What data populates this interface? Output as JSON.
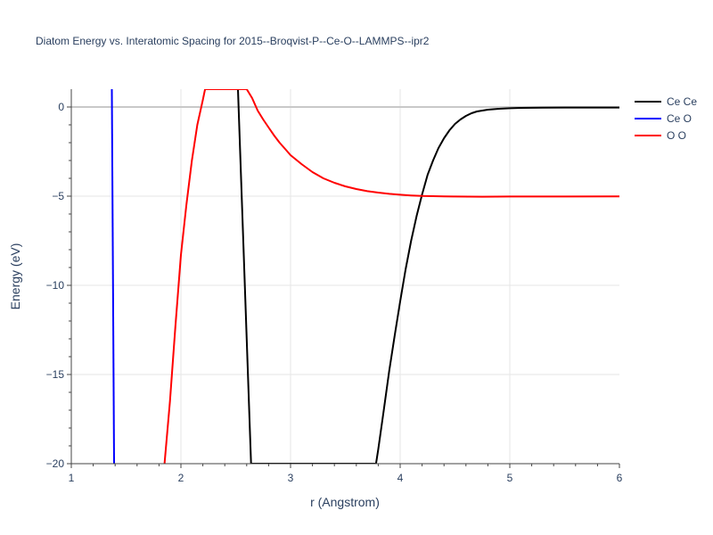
{
  "chart_data": {
    "type": "line",
    "title": "Diatom Energy vs. Interatomic Spacing for 2015--Broqvist-P--Ce-O--LAMMPS--ipr2",
    "xlabel": "r (Angstrom)",
    "ylabel": "Energy (eV)",
    "xlim": [
      1,
      6
    ],
    "ylim": [
      -20,
      1
    ],
    "x_ticks": [
      1,
      2,
      3,
      4,
      5,
      6
    ],
    "x_tick_labels": [
      "1",
      "2",
      "3",
      "4",
      "5",
      "6"
    ],
    "y_ticks": [
      0,
      -5,
      -10,
      -15,
      -20
    ],
    "y_tick_labels": [
      "0",
      "−5",
      "−10",
      "−15",
      "−20"
    ],
    "grid": true,
    "legend_position": "top-right",
    "series": [
      {
        "name": "Ce Ce",
        "color": "#000000",
        "x": [
          2.52,
          2.64,
          3.78,
          3.8,
          3.85,
          3.9,
          3.95,
          4.0,
          4.05,
          4.1,
          4.15,
          4.2,
          4.25,
          4.3,
          4.35,
          4.4,
          4.45,
          4.5,
          4.55,
          4.6,
          4.65,
          4.7,
          4.8,
          4.9,
          5.0,
          5.1,
          5.3,
          5.5,
          5.7,
          6.0
        ],
        "y": [
          1,
          -20,
          -20,
          -19.2,
          -17.0,
          -14.8,
          -12.8,
          -10.9,
          -9.1,
          -7.5,
          -6.1,
          -4.9,
          -3.8,
          -3.0,
          -2.3,
          -1.75,
          -1.3,
          -0.95,
          -0.7,
          -0.5,
          -0.35,
          -0.25,
          -0.15,
          -0.1,
          -0.07,
          -0.05,
          -0.04,
          -0.03,
          -0.03,
          -0.03
        ]
      },
      {
        "name": "Ce O",
        "color": "#0000ff",
        "x": [
          1.37,
          1.39
        ],
        "y": [
          1,
          -20
        ]
      },
      {
        "name": "O O",
        "color": "#ff0000",
        "x": [
          1.85,
          1.9,
          1.95,
          2.0,
          2.05,
          2.1,
          2.15,
          2.2,
          2.22,
          2.6,
          2.65,
          2.7,
          2.75,
          2.8,
          2.85,
          2.9,
          2.95,
          3.0,
          3.1,
          3.2,
          3.3,
          3.4,
          3.5,
          3.6,
          3.7,
          3.8,
          3.9,
          4.0,
          4.1,
          4.2,
          4.3,
          4.4,
          4.5,
          4.75,
          5.0,
          5.5,
          6.0
        ],
        "y": [
          -20,
          -16.5,
          -12.3,
          -8.3,
          -5.5,
          -3.0,
          -1.0,
          0.4,
          1,
          1,
          0.5,
          -0.2,
          -0.7,
          -1.15,
          -1.6,
          -2.0,
          -2.35,
          -2.7,
          -3.2,
          -3.65,
          -4.0,
          -4.25,
          -4.45,
          -4.6,
          -4.72,
          -4.8,
          -4.87,
          -4.92,
          -4.96,
          -4.99,
          -5.0,
          -5.01,
          -5.02,
          -5.03,
          -5.02,
          -5.02,
          -5.01
        ]
      }
    ]
  }
}
